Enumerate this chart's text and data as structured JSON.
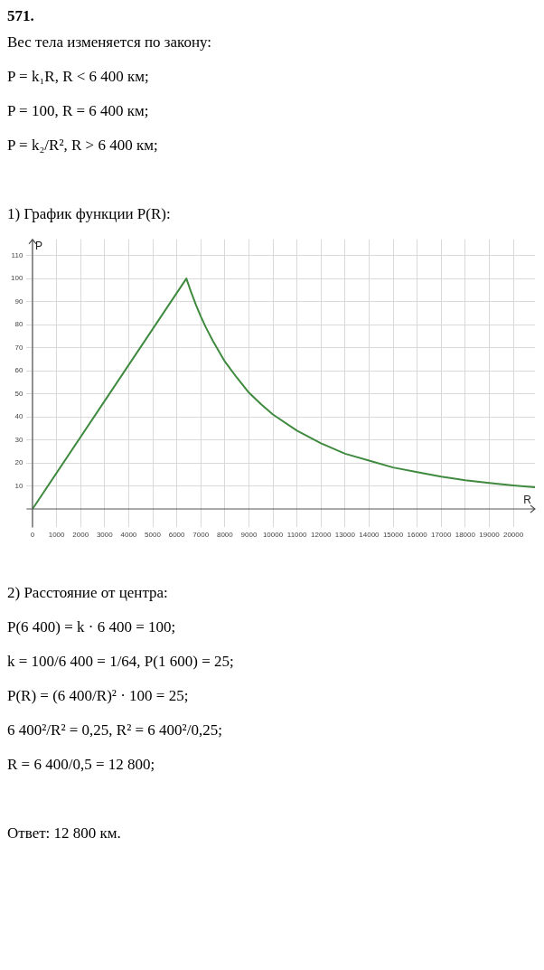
{
  "chart_data": {
    "type": "line",
    "title": "571.",
    "subtitle": "Вес тела изменяется по закону:\nP = k₁R,  R < 6 400 км;\nP = 100,  R = 6 400 км;\nP = k₂/R²,  R > 6 400 км;\n\n1) График функции P(R):",
    "xlabel": "R",
    "ylabel": "P",
    "x": [
      0,
      6400,
      6600,
      6800,
      7000,
      7200,
      7500,
      8000,
      8500,
      9000,
      9500,
      10000,
      11000,
      12000,
      13000,
      14000,
      15000,
      16000,
      17000,
      18000,
      19000,
      20000,
      20900
    ],
    "series": [
      {
        "color": "#3f8a3f",
        "values": [
          0,
          100,
          94,
          88.5,
          83.5,
          79,
          73,
          64,
          57,
          50.5,
          45.5,
          41,
          34,
          28.5,
          24,
          21,
          18,
          16,
          14,
          12.5,
          11.3,
          10.2,
          9.4
        ]
      }
    ],
    "xlim": [
      -250,
      20900
    ],
    "ylim": [
      -8,
      117
    ],
    "xticks": [
      0,
      1000,
      2000,
      3000,
      4000,
      5000,
      6000,
      7000,
      8000,
      9000,
      10000,
      11000,
      12000,
      13000,
      14000,
      15000,
      16000,
      17000,
      18000,
      19000,
      20000
    ],
    "yticks": [
      10,
      20,
      30,
      40,
      50,
      60,
      70,
      80,
      90,
      100,
      110
    ],
    "grid": true,
    "marker": "none",
    "line_style": "solid",
    "annotations": [
      "2) Расстояние от центра:",
      "P(6 400) = k · 6 400 = 100;",
      "k = 100/6 400 = 1/64,  P(1 600) = 25;",
      "P(R) = (6 400/R)² · 100 = 25;",
      "6 400²/R² = 0,25,  R² = 6 400²/0,25;",
      "R = 6 400/0,5 = 12 800;",
      "Ответ:  12 800 км."
    ]
  }
}
